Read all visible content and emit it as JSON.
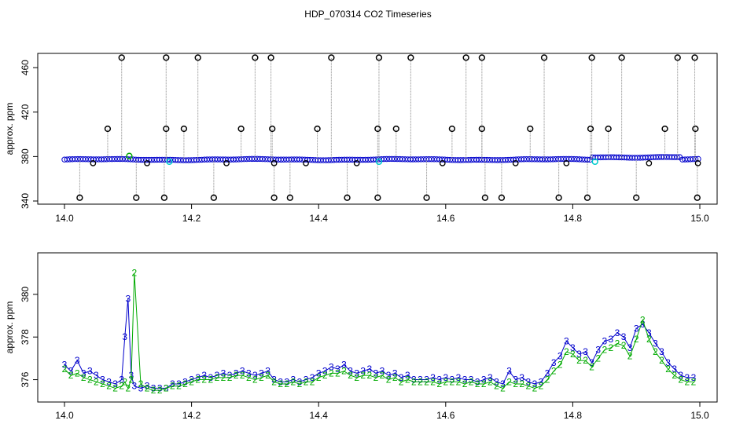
{
  "title": "HDP_070314  CO2 Timeseries",
  "colors": {
    "series_black": "#000000",
    "series_blue": "#0000cc",
    "series_green": "#00aa00",
    "series_cyan": "#00cccc",
    "spike_line": "#888888"
  },
  "chart_data": [
    {
      "type": "scatter",
      "ylabel": "approx. ppm",
      "xlim": [
        14.0,
        15.0
      ],
      "ylim": [
        340,
        470
      ],
      "x_ticks": [
        "14.0",
        "14.2",
        "14.4",
        "14.6",
        "14.8",
        "15.0"
      ],
      "y_ticks": [
        "340",
        "380",
        "420",
        "460"
      ],
      "series": [
        {
          "marker": "o",
          "color": "black",
          "outliers_high": [
            [
              14.09,
              469
            ],
            [
              14.16,
              469
            ],
            [
              14.21,
              469
            ],
            [
              14.3,
              469
            ],
            [
              14.325,
              469
            ],
            [
              14.42,
              469
            ],
            [
              14.495,
              469
            ],
            [
              14.545,
              469
            ],
            [
              14.632,
              469
            ],
            [
              14.657,
              469
            ],
            [
              14.755,
              469
            ],
            [
              14.83,
              469
            ],
            [
              14.877,
              469
            ],
            [
              14.965,
              469
            ],
            [
              14.992,
              469
            ]
          ],
          "outliers_mid": [
            [
              14.068,
              405
            ],
            [
              14.16,
              405
            ],
            [
              14.188,
              405
            ],
            [
              14.278,
              405
            ],
            [
              14.327,
              405
            ],
            [
              14.398,
              405
            ],
            [
              14.493,
              405
            ],
            [
              14.522,
              405
            ],
            [
              14.61,
              405
            ],
            [
              14.657,
              405
            ],
            [
              14.733,
              405
            ],
            [
              14.828,
              405
            ],
            [
              14.856,
              405
            ],
            [
              14.945,
              405
            ],
            [
              14.993,
              405
            ]
          ],
          "outliers_low": [
            [
              14.024,
              343
            ],
            [
              14.113,
              343
            ],
            [
              14.157,
              343
            ],
            [
              14.235,
              343
            ],
            [
              14.33,
              343
            ],
            [
              14.355,
              343
            ],
            [
              14.445,
              343
            ],
            [
              14.493,
              343
            ],
            [
              14.57,
              343
            ],
            [
              14.662,
              343
            ],
            [
              14.688,
              343
            ],
            [
              14.778,
              343
            ],
            [
              14.823,
              343
            ],
            [
              14.9,
              343
            ],
            [
              14.996,
              343
            ]
          ],
          "dips": [
            [
              14.045,
              374
            ],
            [
              14.13,
              374
            ],
            [
              14.255,
              374
            ],
            [
              14.33,
              374
            ],
            [
              14.38,
              374
            ],
            [
              14.46,
              374
            ],
            [
              14.595,
              374
            ],
            [
              14.71,
              374
            ],
            [
              14.79,
              374
            ],
            [
              14.92,
              374
            ],
            [
              14.997,
              374
            ]
          ]
        }
      ]
    },
    {
      "type": "line",
      "ylabel": "approx. ppm",
      "xlim": [
        14.0,
        15.0
      ],
      "ylim": [
        375.1,
        381.8
      ],
      "x_ticks": [
        "14.0",
        "14.2",
        "14.4",
        "14.6",
        "14.8",
        "15.0"
      ],
      "y_ticks": [
        "376",
        "378",
        "380"
      ],
      "x": [
        14.0,
        14.01,
        14.02,
        14.03,
        14.04,
        14.05,
        14.06,
        14.07,
        14.08,
        14.09,
        14.095,
        14.1,
        14.105,
        14.11,
        14.12,
        14.13,
        14.14,
        14.15,
        14.16,
        14.17,
        14.18,
        14.19,
        14.2,
        14.21,
        14.22,
        14.23,
        14.24,
        14.25,
        14.26,
        14.27,
        14.28,
        14.29,
        14.3,
        14.31,
        14.32,
        14.33,
        14.34,
        14.35,
        14.36,
        14.37,
        14.38,
        14.39,
        14.4,
        14.41,
        14.42,
        14.43,
        14.44,
        14.45,
        14.46,
        14.47,
        14.48,
        14.49,
        14.5,
        14.51,
        14.52,
        14.53,
        14.54,
        14.55,
        14.56,
        14.57,
        14.58,
        14.59,
        14.6,
        14.61,
        14.62,
        14.63,
        14.64,
        14.65,
        14.66,
        14.67,
        14.68,
        14.69,
        14.7,
        14.71,
        14.72,
        14.73,
        14.74,
        14.75,
        14.76,
        14.77,
        14.78,
        14.79,
        14.8,
        14.81,
        14.82,
        14.83,
        14.84,
        14.85,
        14.86,
        14.87,
        14.88,
        14.89,
        14.9,
        14.91,
        14.92,
        14.93,
        14.94,
        14.95,
        14.96,
        14.97,
        14.98,
        14.99
      ],
      "series": [
        {
          "label_char": "3",
          "color": "blue",
          "values": [
            376.7,
            376.4,
            376.9,
            376.3,
            376.4,
            376.2,
            376.0,
            375.9,
            375.8,
            376.0,
            378.0,
            379.8,
            376.2,
            375.7,
            375.6,
            375.7,
            375.6,
            375.6,
            375.6,
            375.8,
            375.8,
            375.9,
            376.0,
            376.1,
            376.2,
            376.1,
            376.2,
            376.3,
            376.2,
            376.3,
            376.4,
            376.3,
            376.2,
            376.3,
            376.4,
            376.0,
            375.9,
            375.9,
            376.0,
            375.9,
            376.0,
            376.1,
            376.3,
            376.4,
            376.6,
            376.5,
            376.7,
            376.4,
            376.3,
            376.4,
            376.5,
            376.3,
            376.4,
            376.2,
            376.3,
            376.1,
            376.2,
            376.0,
            376.0,
            376.0,
            376.1,
            376.0,
            376.1,
            376.0,
            376.1,
            376.0,
            376.0,
            375.9,
            376.0,
            376.1,
            375.9,
            375.8,
            376.4,
            376.0,
            376.1,
            375.9,
            375.8,
            375.9,
            376.3,
            376.8,
            377.1,
            377.8,
            377.5,
            377.2,
            377.3,
            376.8,
            377.4,
            377.8,
            377.9,
            378.2,
            378.0,
            377.5,
            378.4,
            378.6,
            378.2,
            377.7,
            377.3,
            376.8,
            376.5,
            376.2,
            376.1,
            376.1
          ]
        },
        {
          "label_char": "2",
          "color": "green",
          "values": [
            376.5,
            376.2,
            376.3,
            376.1,
            376.0,
            375.9,
            375.8,
            375.7,
            375.6,
            375.7,
            375.9,
            375.6,
            376.0,
            381.0,
            375.8,
            375.6,
            375.5,
            375.5,
            375.6,
            375.7,
            375.7,
            375.8,
            375.9,
            376.0,
            376.0,
            376.0,
            376.1,
            376.1,
            376.1,
            376.2,
            376.2,
            376.1,
            376.0,
            376.1,
            376.2,
            375.9,
            375.8,
            375.8,
            375.9,
            375.8,
            375.9,
            375.9,
            376.1,
            376.2,
            376.3,
            376.3,
            376.4,
            376.2,
            376.1,
            376.2,
            376.2,
            376.1,
            376.2,
            376.0,
            376.1,
            375.9,
            376.0,
            375.9,
            375.9,
            375.9,
            375.9,
            375.8,
            375.9,
            375.9,
            375.9,
            375.8,
            375.9,
            375.8,
            375.8,
            375.9,
            375.7,
            375.6,
            375.9,
            375.8,
            375.8,
            375.7,
            375.6,
            375.7,
            376.0,
            376.4,
            376.7,
            377.3,
            377.2,
            376.9,
            376.9,
            376.6,
            377.0,
            377.4,
            377.5,
            377.7,
            377.6,
            377.1,
            377.9,
            378.8,
            377.9,
            377.3,
            376.9,
            376.5,
            376.2,
            376.0,
            375.9,
            375.9
          ]
        }
      ]
    }
  ]
}
